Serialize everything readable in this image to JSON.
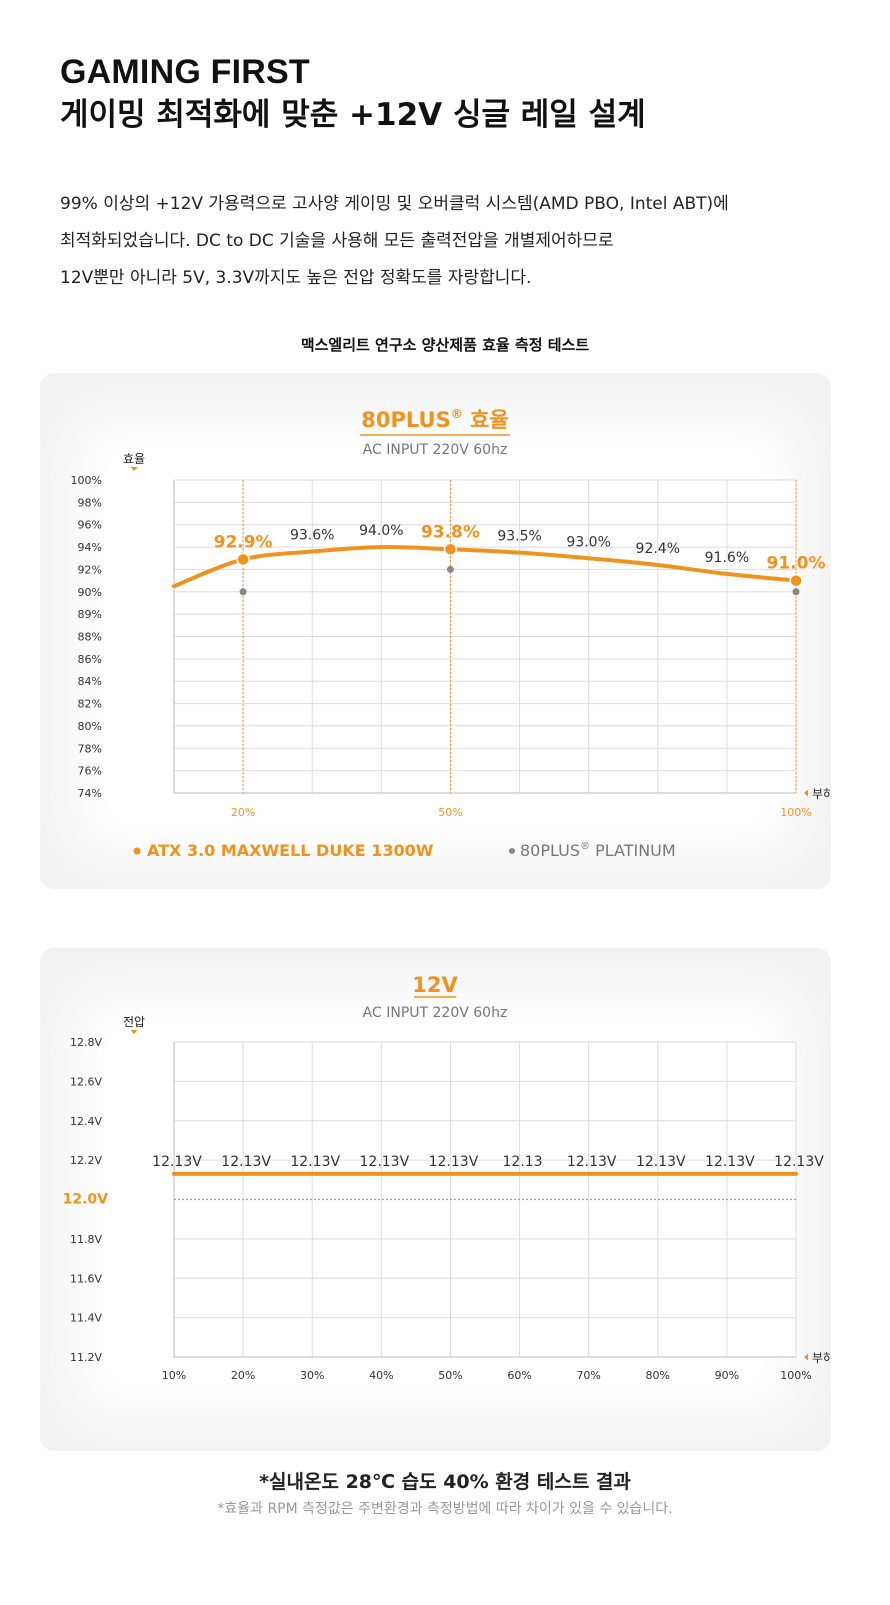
{
  "heading": {
    "line1": "GAMING FIRST",
    "line2": "게이밍 최적화에 맞춘 +12V 싱글 레일 설계"
  },
  "description": [
    "99% 이상의 +12V 가용력으로 고사양 게이밍 및 오버클럭 시스템(AMD PBO, Intel ABT)에",
    "최적화되었습니다. DC to DC 기술을 사용해 모든 출력전압을 개별제어하므로",
    "12V뿐만 아니라 5V, 3.3V까지도 높은 전압 정확도를 자랑합니다."
  ],
  "section_title": "맥스엘리트 연구소 양산제품 효율 측정 테스트",
  "colors": {
    "accent": "#f0931e",
    "gray_point": "#888888",
    "grid": "#dddddd",
    "panel_bg": "#f2f2f2"
  },
  "chart_data": [
    {
      "type": "line",
      "title": "80PLUS",
      "title_sup": "®",
      "title_suffix": " 효율",
      "subtitle": "AC INPUT 220V 60hz",
      "ylabel": "효율",
      "xlabel": "부하율",
      "yticks": [
        "100%",
        "98%",
        "96%",
        "94%",
        "92%",
        "90%",
        "89%",
        "88%",
        "86%",
        "84%",
        "82%",
        "80%",
        "78%",
        "76%",
        "74%"
      ],
      "xticks": [
        {
          "x": 20,
          "label": "20%"
        },
        {
          "x": 50,
          "label": "50%"
        },
        {
          "x": 100,
          "label": "100%"
        }
      ],
      "xlim": [
        10,
        100
      ],
      "grid": true,
      "series": [
        {
          "name": "ATX 3.0 MAXWELL DUKE 1300W",
          "color": "#f0931e",
          "x": [
            10,
            20,
            30,
            40,
            50,
            60,
            70,
            80,
            90,
            100
          ],
          "values": [
            90.5,
            92.9,
            93.6,
            94.0,
            93.8,
            93.5,
            93.0,
            92.4,
            91.6,
            91.0
          ],
          "labels": [
            "",
            "92.9%",
            "93.6%",
            "94.0%",
            "93.8%",
            "93.5%",
            "93.0%",
            "92.4%",
            "91.6%",
            "91.0%"
          ],
          "emphasis": [
            false,
            true,
            false,
            false,
            true,
            false,
            false,
            false,
            false,
            true
          ]
        },
        {
          "name": "80PLUS",
          "name_sup": "®",
          "name_suffix": " PLATINUM",
          "color": "#888888",
          "x": [
            20,
            50,
            100
          ],
          "values": [
            90,
            92,
            90
          ]
        }
      ],
      "legend_position": "bottom"
    },
    {
      "type": "line",
      "title": "12V",
      "subtitle": "AC INPUT 220V 60hz",
      "ylabel": "전압",
      "xlabel": "부하율",
      "ylim": [
        11.2,
        12.8
      ],
      "yticks": [
        "12.8V",
        "12.6V",
        "12.4V",
        "12.2V",
        "12.0V",
        "11.8V",
        "11.6V",
        "11.4V",
        "11.2V"
      ],
      "ytick_values": [
        12.8,
        12.6,
        12.4,
        12.2,
        12.0,
        11.8,
        11.6,
        11.4,
        11.2
      ],
      "reference_line": {
        "value": 12.0,
        "label": "12.0V"
      },
      "xticks": [
        {
          "x": 10,
          "label": "10%"
        },
        {
          "x": 20,
          "label": "20%"
        },
        {
          "x": 30,
          "label": "30%"
        },
        {
          "x": 40,
          "label": "40%"
        },
        {
          "x": 50,
          "label": "50%"
        },
        {
          "x": 60,
          "label": "60%"
        },
        {
          "x": 70,
          "label": "70%"
        },
        {
          "x": 80,
          "label": "80%"
        },
        {
          "x": 90,
          "label": "90%"
        },
        {
          "x": 100,
          "label": "100%"
        }
      ],
      "xlim": [
        10,
        100
      ],
      "grid": true,
      "series": [
        {
          "color": "#f0931e",
          "x": [
            10,
            20,
            30,
            40,
            50,
            60,
            70,
            80,
            90,
            100
          ],
          "values": [
            12.13,
            12.13,
            12.13,
            12.13,
            12.13,
            12.13,
            12.13,
            12.13,
            12.13,
            12.13
          ],
          "labels": [
            "12.13V",
            "12.13V",
            "12.13V",
            "12.13V",
            "12.13V",
            "12.13",
            "12.13V",
            "12.13V",
            "12.13V",
            "12.13V"
          ]
        }
      ]
    }
  ],
  "footnote": {
    "main": "*실내온도 28℃ 습도 40% 환경 테스트 결과",
    "sub": "*효율과 RPM 측정값은 주변환경과 측정방법에 따라 차이가 있을 수 있습니다."
  }
}
